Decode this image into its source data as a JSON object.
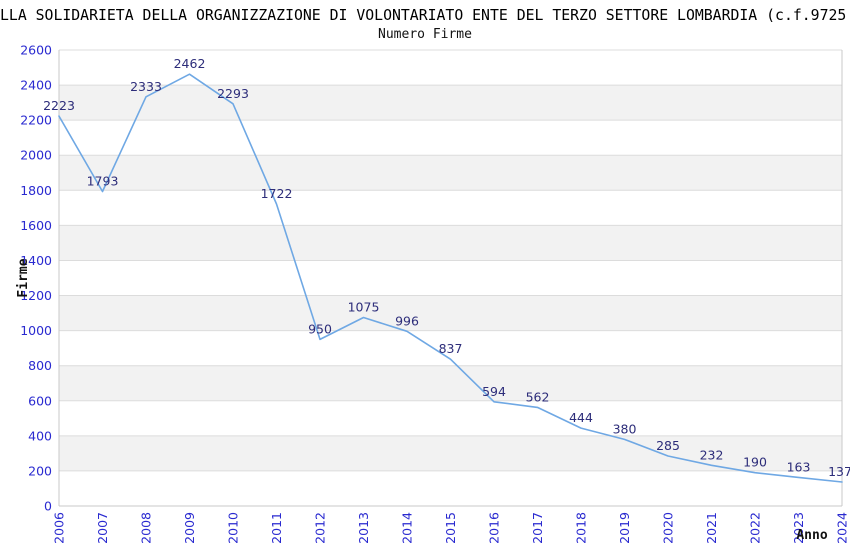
{
  "header": {
    "title": "LLA SOLIDARIETA DELLA ORGANIZZAZIONE DI VOLONTARIATO ENTE DEL TERZO SETTORE LOMBARDIA (c.f.9725",
    "subtitle": "Numero Firme"
  },
  "chart_data": {
    "type": "line",
    "title": "Numero Firme",
    "xlabel": "Anno",
    "ylabel": "Firme",
    "categories": [
      "2006",
      "2007",
      "2008",
      "2009",
      "2010",
      "2011",
      "2012",
      "2013",
      "2014",
      "2015",
      "2016",
      "2017",
      "2018",
      "2019",
      "2020",
      "2021",
      "2022",
      "2023",
      "2024"
    ],
    "values": [
      2223,
      1793,
      2333,
      2462,
      2293,
      1722,
      950,
      1075,
      996,
      837,
      594,
      562,
      444,
      380,
      285,
      232,
      190,
      163,
      137
    ],
    "ylim": [
      0,
      2600
    ],
    "ytick_step": 200,
    "grid": true,
    "banded_background": true,
    "legend": "none",
    "colors": {
      "line": "#6fa8e4",
      "data_label": "#2d2d7a",
      "tick_label": "#2a2ad0",
      "band": "#f2f2f2",
      "gridline": "#dcdcdc",
      "axis_border": "#c9c9c9",
      "axis_title": "#111111"
    }
  }
}
